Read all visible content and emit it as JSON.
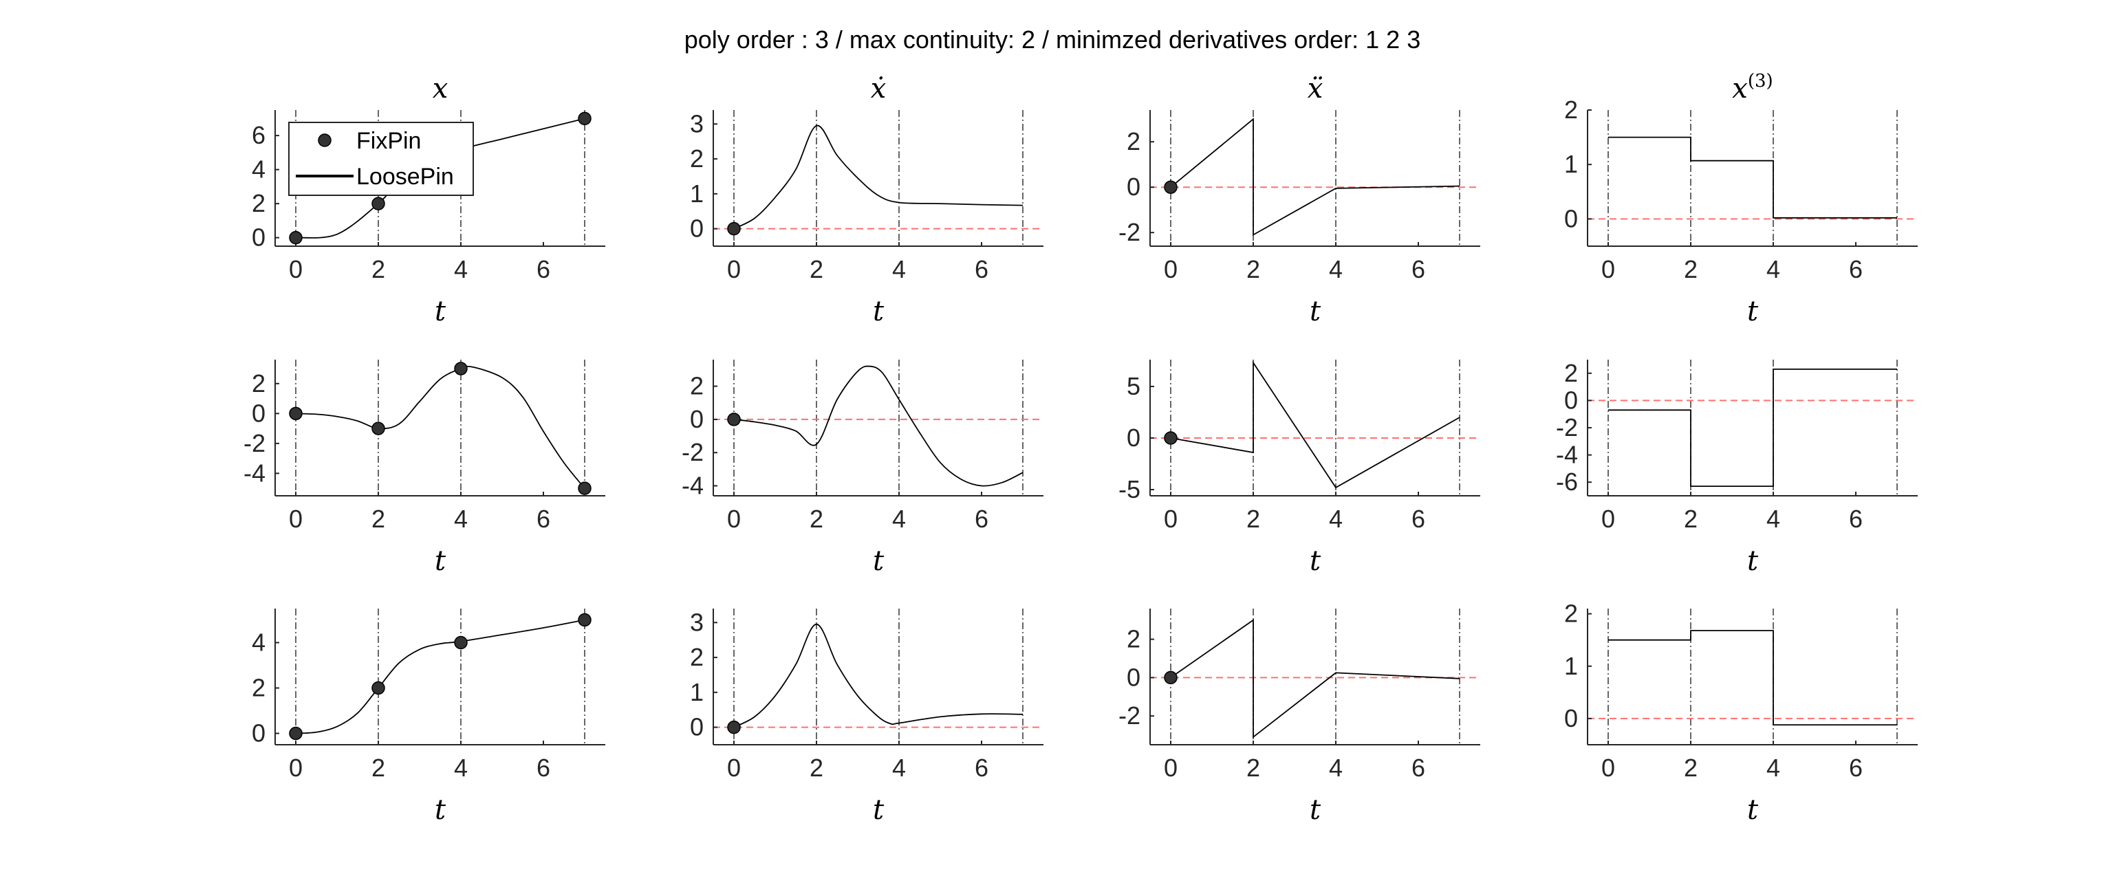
{
  "figure": {
    "suptitle": "poly order : 3 / max continuity: 2 / minimzed derivatives order: 1  2  3",
    "column_titles": [
      "x",
      "ẋ",
      "ẍ",
      "x(3)"
    ],
    "legend": {
      "location": "top-left of first subplot",
      "entries": [
        {
          "label": "FixPin",
          "style": "marker"
        },
        {
          "label": "LoosePin",
          "style": "line"
        }
      ]
    },
    "colors": {
      "curve": "#000000",
      "pin_marker": "#333333",
      "zero_line": "#ff7070",
      "knot_line": "#333333",
      "axis": "#262626"
    }
  },
  "chart_data": [
    {
      "row": 0,
      "col": 0,
      "type": "line",
      "title": "x",
      "xlabel": "t",
      "xlim": [
        -0.5,
        7.5
      ],
      "ylim": [
        -0.5,
        7.5
      ],
      "xticks": [
        0,
        2,
        4,
        6
      ],
      "yticks": [
        0,
        2,
        4,
        6
      ],
      "knots": [
        0,
        2,
        4,
        7
      ],
      "zero_line": false,
      "pins": [
        [
          0,
          0
        ],
        [
          2,
          2
        ],
        [
          7,
          7
        ]
      ],
      "series": [
        {
          "kind": "poly",
          "x": [
            0,
            1,
            2,
            2.5,
            3,
            3.5,
            4,
            5,
            6,
            7
          ],
          "y": [
            0,
            0.2,
            2,
            3.3,
            4.2,
            4.8,
            5.2,
            5.8,
            6.4,
            7
          ]
        }
      ]
    },
    {
      "row": 0,
      "col": 1,
      "type": "line",
      "title": "ẋ",
      "xlabel": "t",
      "xlim": [
        -0.5,
        7.5
      ],
      "ylim": [
        -0.5,
        3.4
      ],
      "xticks": [
        0,
        2,
        4,
        6
      ],
      "yticks": [
        0,
        1,
        2,
        3
      ],
      "knots": [
        0,
        2,
        4,
        7
      ],
      "zero_line": true,
      "pins": [
        [
          0,
          0
        ]
      ],
      "series": [
        {
          "kind": "poly",
          "x": [
            0,
            0.5,
            1,
            1.5,
            2,
            2.5,
            3,
            3.5,
            4,
            5,
            6,
            7
          ],
          "y": [
            0,
            0.3,
            0.9,
            1.7,
            2.95,
            2.1,
            1.45,
            0.95,
            0.75,
            0.72,
            0.69,
            0.67
          ]
        }
      ]
    },
    {
      "row": 0,
      "col": 2,
      "type": "line",
      "title": "ẍ",
      "xlabel": "t",
      "xlim": [
        -0.5,
        7.5
      ],
      "ylim": [
        -2.6,
        3.4
      ],
      "xticks": [
        0,
        2,
        4,
        6
      ],
      "yticks": [
        -2,
        0,
        2
      ],
      "knots": [
        0,
        2,
        4,
        7
      ],
      "zero_line": true,
      "pins": [
        [
          0,
          0
        ]
      ],
      "series": [
        {
          "kind": "step",
          "x": [
            0,
            2,
            2,
            4,
            7
          ],
          "y": [
            0,
            3,
            -2.1,
            -0.05,
            0.05
          ]
        }
      ]
    },
    {
      "row": 0,
      "col": 3,
      "type": "line",
      "title": "x(3)",
      "xlabel": "t",
      "xlim": [
        -0.5,
        7.5
      ],
      "ylim": [
        -0.5,
        2.0
      ],
      "xticks": [
        0,
        2,
        4,
        6
      ],
      "yticks": [
        0,
        1,
        2
      ],
      "knots": [
        0,
        2,
        4,
        7
      ],
      "zero_line": true,
      "pins": [],
      "series": [
        {
          "kind": "step",
          "x": [
            0,
            2,
            2,
            4,
            4,
            7
          ],
          "y": [
            1.5,
            1.5,
            1.07,
            1.07,
            0.02,
            0.02
          ]
        }
      ]
    },
    {
      "row": 1,
      "col": 0,
      "type": "line",
      "title": "",
      "xlabel": "t",
      "xlim": [
        -0.5,
        7.5
      ],
      "ylim": [
        -5.5,
        3.6
      ],
      "xticks": [
        0,
        2,
        4,
        6
      ],
      "yticks": [
        -4,
        -2,
        0,
        2
      ],
      "knots": [
        0,
        2,
        4,
        7
      ],
      "zero_line": false,
      "pins": [
        [
          0,
          0
        ],
        [
          2,
          -1
        ],
        [
          4,
          3
        ],
        [
          7,
          -5
        ]
      ],
      "series": [
        {
          "kind": "poly",
          "x": [
            0,
            0.5,
            1,
            1.5,
            2,
            2.5,
            3,
            3.5,
            4,
            4.3,
            5,
            5.5,
            6,
            6.5,
            7
          ],
          "y": [
            0,
            -0.05,
            -0.2,
            -0.5,
            -1,
            -0.7,
            0.8,
            2.3,
            3,
            3.1,
            2.4,
            1.1,
            -1.2,
            -3.3,
            -5
          ]
        }
      ]
    },
    {
      "row": 1,
      "col": 1,
      "type": "line",
      "title": "",
      "xlabel": "t",
      "xlim": [
        -0.5,
        7.5
      ],
      "ylim": [
        -4.6,
        3.6
      ],
      "xticks": [
        0,
        2,
        4,
        6
      ],
      "yticks": [
        -4,
        -2,
        0,
        2
      ],
      "knots": [
        0,
        2,
        4,
        7
      ],
      "zero_line": true,
      "pins": [
        [
          0,
          0
        ]
      ],
      "series": [
        {
          "kind": "poly",
          "x": [
            0,
            0.5,
            1,
            1.5,
            2,
            2.5,
            3,
            3.3,
            3.6,
            4,
            4.5,
            5,
            5.5,
            6,
            6.5,
            7
          ],
          "y": [
            0,
            -0.15,
            -0.35,
            -0.7,
            -1.5,
            1.2,
            2.9,
            3.2,
            2.8,
            1.2,
            -0.8,
            -2.6,
            -3.6,
            -4.0,
            -3.8,
            -3.2
          ]
        }
      ]
    },
    {
      "row": 1,
      "col": 2,
      "type": "line",
      "title": "",
      "xlabel": "t",
      "xlim": [
        -0.5,
        7.5
      ],
      "ylim": [
        -5.6,
        7.6
      ],
      "xticks": [
        0,
        2,
        4,
        6
      ],
      "yticks": [
        -5,
        0,
        5
      ],
      "knots": [
        0,
        2,
        4,
        7
      ],
      "zero_line": true,
      "pins": [
        [
          0,
          0
        ]
      ],
      "series": [
        {
          "kind": "step",
          "x": [
            0,
            2,
            2,
            4,
            7
          ],
          "y": [
            0,
            -1.4,
            7.3,
            -4.8,
            2
          ]
        }
      ]
    },
    {
      "row": 1,
      "col": 3,
      "type": "line",
      "title": "",
      "xlabel": "t",
      "xlim": [
        -0.5,
        7.5
      ],
      "ylim": [
        -7.0,
        3.0
      ],
      "xticks": [
        0,
        2,
        4,
        6
      ],
      "yticks": [
        -6,
        -4,
        -2,
        0,
        2
      ],
      "knots": [
        0,
        2,
        4,
        7
      ],
      "zero_line": true,
      "pins": [],
      "series": [
        {
          "kind": "step",
          "x": [
            0,
            2,
            2,
            4,
            4,
            7
          ],
          "y": [
            -0.7,
            -0.7,
            -6.3,
            -6.3,
            2.3,
            2.3
          ]
        }
      ]
    },
    {
      "row": 2,
      "col": 0,
      "type": "line",
      "title": "",
      "xlabel": "t",
      "xlim": [
        -0.5,
        7.5
      ],
      "ylim": [
        -0.5,
        5.5
      ],
      "xticks": [
        0,
        2,
        4,
        6
      ],
      "yticks": [
        0,
        2,
        4
      ],
      "knots": [
        0,
        2,
        4,
        7
      ],
      "zero_line": false,
      "pins": [
        [
          0,
          0
        ],
        [
          2,
          2
        ],
        [
          4,
          4
        ],
        [
          7,
          5
        ]
      ],
      "series": [
        {
          "kind": "poly",
          "x": [
            0,
            0.5,
            1,
            1.5,
            2,
            2.5,
            3,
            3.5,
            4,
            5,
            6,
            7
          ],
          "y": [
            0,
            0.05,
            0.3,
            0.9,
            2,
            3.1,
            3.7,
            3.95,
            4.05,
            4.35,
            4.65,
            5
          ]
        }
      ]
    },
    {
      "row": 2,
      "col": 1,
      "type": "line",
      "title": "",
      "xlabel": "t",
      "xlim": [
        -0.5,
        7.5
      ],
      "ylim": [
        -0.5,
        3.4
      ],
      "xticks": [
        0,
        2,
        4,
        6
      ],
      "yticks": [
        0,
        1,
        2,
        3
      ],
      "knots": [
        0,
        2,
        4,
        7
      ],
      "zero_line": true,
      "pins": [
        [
          0,
          0
        ]
      ],
      "series": [
        {
          "kind": "poly",
          "x": [
            0,
            0.5,
            1,
            1.5,
            2,
            2.5,
            3,
            3.5,
            3.8,
            4,
            5,
            6,
            7
          ],
          "y": [
            0,
            0.3,
            0.9,
            1.8,
            2.95,
            1.8,
            0.9,
            0.3,
            0.1,
            0.12,
            0.3,
            0.38,
            0.37
          ]
        }
      ]
    },
    {
      "row": 2,
      "col": 2,
      "type": "line",
      "title": "",
      "xlabel": "t",
      "xlim": [
        -0.5,
        7.5
      ],
      "ylim": [
        -3.5,
        3.6
      ],
      "xticks": [
        0,
        2,
        4,
        6
      ],
      "yticks": [
        -2,
        0,
        2
      ],
      "knots": [
        0,
        2,
        4,
        7
      ],
      "zero_line": true,
      "pins": [
        [
          0,
          0
        ]
      ],
      "series": [
        {
          "kind": "step",
          "x": [
            0,
            2,
            2,
            4,
            7
          ],
          "y": [
            0,
            3,
            -3.1,
            0.25,
            -0.05
          ]
        }
      ]
    },
    {
      "row": 2,
      "col": 3,
      "type": "line",
      "title": "",
      "xlabel": "t",
      "xlim": [
        -0.5,
        7.5
      ],
      "ylim": [
        -0.5,
        2.1
      ],
      "xticks": [
        0,
        2,
        4,
        6
      ],
      "yticks": [
        0,
        1,
        2
      ],
      "knots": [
        0,
        2,
        4,
        7
      ],
      "zero_line": true,
      "pins": [],
      "series": [
        {
          "kind": "step",
          "x": [
            0,
            2,
            2,
            4,
            4,
            7
          ],
          "y": [
            1.5,
            1.5,
            1.68,
            1.68,
            -0.12,
            -0.12
          ]
        }
      ]
    }
  ]
}
